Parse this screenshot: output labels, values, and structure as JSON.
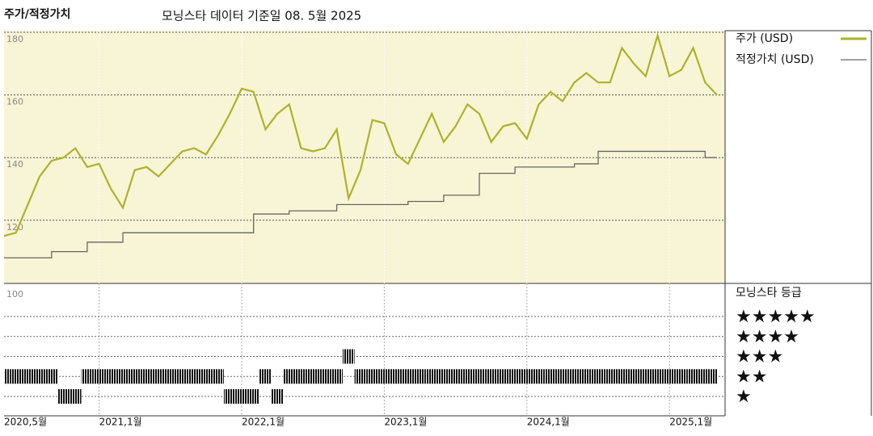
{
  "chart_data": [
    {
      "type": "line",
      "title": "주가/적정가치",
      "subtitle": "모닝스타 데이터 기준일 08. 5월 2025",
      "x": [
        "2020-05",
        "2020-06",
        "2020-07",
        "2020-08",
        "2020-09",
        "2020-10",
        "2020-11",
        "2020-12",
        "2021-01",
        "2021-02",
        "2021-03",
        "2021-04",
        "2021-05",
        "2021-06",
        "2021-07",
        "2021-08",
        "2021-09",
        "2021-10",
        "2021-11",
        "2021-12",
        "2022-01",
        "2022-02",
        "2022-03",
        "2022-04",
        "2022-05",
        "2022-06",
        "2022-07",
        "2022-08",
        "2022-09",
        "2022-10",
        "2022-11",
        "2022-12",
        "2023-01",
        "2023-02",
        "2023-03",
        "2023-04",
        "2023-05",
        "2023-06",
        "2023-07",
        "2023-08",
        "2023-09",
        "2023-10",
        "2023-11",
        "2023-12",
        "2024-01",
        "2024-02",
        "2024-03",
        "2024-04",
        "2024-05",
        "2024-06",
        "2024-07",
        "2024-08",
        "2024-09",
        "2024-10",
        "2024-11",
        "2024-12",
        "2025-01",
        "2025-02",
        "2025-03",
        "2025-04",
        "2025-05"
      ],
      "xticks": [
        {
          "value": "2020-05",
          "label": "2020,5월"
        },
        {
          "value": "2021-01",
          "label": "2021,1월"
        },
        {
          "value": "2022-01",
          "label": "2022,1월"
        },
        {
          "value": "2023-01",
          "label": "2023,1월"
        },
        {
          "value": "2024-01",
          "label": "2024,1월"
        },
        {
          "value": "2025-01",
          "label": "2025,1월"
        }
      ],
      "ylim": [
        100,
        180
      ],
      "yticks": [
        120,
        140,
        160,
        180
      ],
      "grid": true,
      "background": "#f8f4d6",
      "series": [
        {
          "name": "주가 (USD)",
          "color": "#adb22a",
          "values": [
            115,
            116,
            125,
            134,
            139,
            140,
            143,
            137,
            138,
            130,
            124,
            136,
            137,
            134,
            138,
            142,
            143,
            141,
            147,
            154,
            162,
            161,
            149,
            154,
            157,
            143,
            142,
            143,
            149,
            127,
            136,
            152,
            151,
            141,
            138,
            146,
            154,
            145,
            150,
            157,
            154,
            145,
            150,
            151,
            146,
            157,
            161,
            158,
            164,
            167,
            164,
            164,
            175,
            170,
            166,
            179,
            166,
            168,
            175,
            164,
            160
          ]
        },
        {
          "name": "적정가치 (USD)",
          "color": "#666666",
          "step": true,
          "values": [
            108,
            108,
            108,
            108,
            110,
            110,
            110,
            113,
            113,
            113,
            116,
            116,
            116,
            116,
            116,
            116,
            116,
            116,
            116,
            116,
            116,
            122,
            122,
            122,
            123,
            123,
            123,
            123,
            125,
            125,
            125,
            125,
            125,
            125,
            126,
            126,
            126,
            128,
            128,
            128,
            135,
            135,
            135,
            137,
            137,
            137,
            137,
            137,
            138,
            138,
            142,
            142,
            142,
            142,
            142,
            142,
            142,
            142,
            142,
            140,
            140
          ]
        }
      ]
    },
    {
      "type": "rating",
      "title": "모닝스타 등급",
      "axis_label": "100",
      "row_labels": [
        "★★★★★",
        "★★★★",
        "★★★",
        "★★",
        "★"
      ],
      "color": "#111111",
      "values": [
        2,
        2,
        2,
        2,
        2,
        1,
        1,
        2,
        2,
        2,
        2,
        2,
        2,
        2,
        2,
        2,
        2,
        2,
        2,
        1,
        1,
        1,
        2,
        1,
        2,
        2,
        2,
        2,
        2,
        3,
        2,
        2,
        2,
        2,
        2,
        2,
        2,
        2,
        2,
        2,
        2,
        2,
        2,
        2,
        2,
        2,
        2,
        2,
        2,
        2,
        2,
        2,
        2,
        2,
        2,
        2,
        2,
        2,
        2,
        2,
        2
      ]
    }
  ]
}
